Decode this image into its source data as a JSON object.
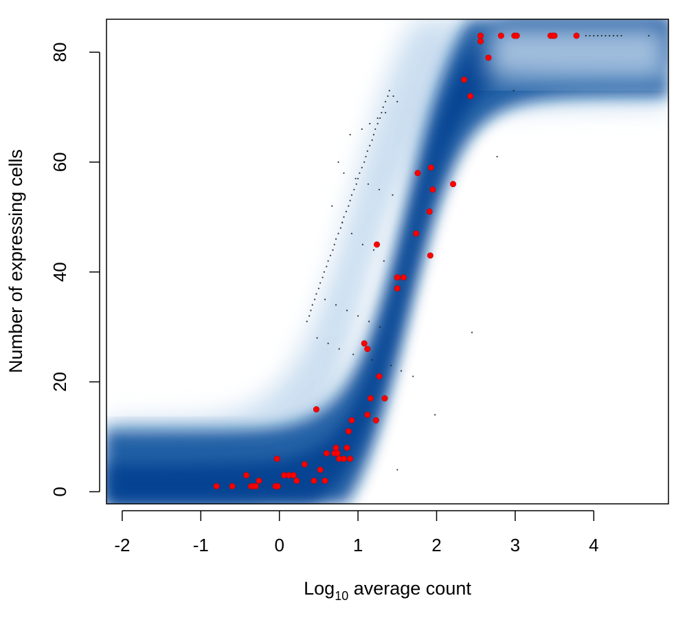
{
  "chart_data": {
    "type": "scatter",
    "title": "",
    "xlabel": {
      "prefix": "Log",
      "subscript": "10",
      "suffix": " average count"
    },
    "ylabel": "Number of expressing cells",
    "xlim": [
      -2.2,
      4.95
    ],
    "ylim": [
      -2.2,
      86
    ],
    "xticks": [
      -2,
      -1,
      0,
      1,
      2,
      3,
      4
    ],
    "yticks": [
      0,
      20,
      40,
      60,
      80
    ],
    "xtick_labels": [
      "-2",
      "-1",
      "0",
      "1",
      "2",
      "3",
      "4"
    ],
    "ytick_labels": [
      "0",
      "20",
      "40",
      "60",
      "80"
    ],
    "grid": false,
    "background_density_color": "#08519c",
    "density_light_color": "#c6dbef",
    "highlight_color": "#ff0000",
    "background_point_color": "#1f1f1f",
    "highlight_series": {
      "x": [
        -0.8,
        -0.6,
        -0.42,
        -0.36,
        -0.33,
        -0.3,
        -0.26,
        -0.05,
        -0.02,
        -0.03,
        0.06,
        0.12,
        0.18,
        0.22,
        0.32,
        0.44,
        0.47,
        0.52,
        0.58,
        0.6,
        0.7,
        0.72,
        0.74,
        0.76,
        0.82,
        0.86,
        0.88,
        0.9,
        0.92,
        1.08,
        1.12,
        1.12,
        1.16,
        1.23,
        1.24,
        1.27,
        1.34,
        1.5,
        1.5,
        1.58,
        1.74,
        1.76,
        1.91,
        1.92,
        1.93,
        1.95,
        2.21,
        2.35,
        2.43,
        2.56,
        2.56,
        2.66,
        2.82,
        2.99,
        3.02,
        3.45,
        3.48,
        3.5,
        3.78
      ],
      "y": [
        1,
        1,
        3,
        1,
        1,
        1,
        2,
        1,
        1,
        6,
        3,
        3,
        3,
        2,
        5,
        2,
        15,
        4,
        2,
        7,
        7,
        8,
        7,
        6,
        6,
        8,
        11,
        6,
        13,
        27,
        14,
        26,
        17,
        13,
        45,
        21,
        17,
        37,
        39,
        39,
        47,
        58,
        51,
        43,
        59,
        55,
        56,
        75,
        72,
        82,
        83,
        79,
        83,
        83,
        83,
        83,
        83,
        83,
        83
      ]
    },
    "background_series": {
      "x": [
        0.35,
        0.38,
        0.4,
        0.42,
        0.45,
        0.47,
        0.5,
        0.52,
        0.55,
        0.57,
        0.6,
        0.62,
        0.65,
        0.68,
        0.7,
        0.72,
        0.75,
        0.78,
        0.8,
        0.82,
        0.85,
        0.88,
        0.9,
        0.92,
        0.95,
        0.98,
        1.0,
        1.02,
        1.05,
        1.08,
        1.1,
        1.12,
        1.15,
        1.18,
        1.2,
        1.22,
        1.25,
        1.28,
        1.3,
        1.32,
        1.35,
        1.38,
        1.4,
        1.45,
        1.5,
        0.9,
        1.05,
        1.15,
        1.25,
        1.35,
        0.75,
        0.82,
        0.97,
        1.13,
        1.27,
        1.44,
        0.67,
        0.8,
        0.92,
        1.06,
        1.2,
        1.33,
        0.58,
        0.72,
        0.86,
        1.0,
        1.14,
        1.28,
        0.48,
        0.62,
        0.76,
        0.94,
        1.18,
        1.42,
        1.55,
        1.7,
        2.45,
        2.77,
        2.98,
        1.5,
        1.98,
        3.9,
        3.95,
        4.0,
        4.05,
        4.1,
        4.15,
        4.2,
        4.25,
        4.3,
        4.35,
        4.7
      ],
      "y": [
        31,
        32,
        33,
        34,
        35,
        36,
        37,
        38,
        39,
        40,
        41,
        42,
        43,
        44,
        45,
        46,
        47,
        48,
        49,
        50,
        51,
        52,
        53,
        54,
        55,
        56,
        57,
        58,
        59,
        60,
        61,
        62,
        63,
        64,
        65,
        66,
        67,
        68,
        69,
        70,
        71,
        72,
        73,
        72,
        71,
        65,
        66,
        67,
        68,
        69,
        60,
        58,
        57,
        56,
        55,
        54,
        52,
        49,
        47,
        45,
        44,
        42,
        35,
        34,
        33,
        32,
        31,
        30,
        28,
        27,
        26,
        25,
        24,
        23,
        22,
        21,
        29,
        61,
        73,
        4,
        14,
        83,
        83,
        83,
        83,
        83,
        83,
        83,
        83,
        83,
        83,
        83
      ]
    }
  }
}
